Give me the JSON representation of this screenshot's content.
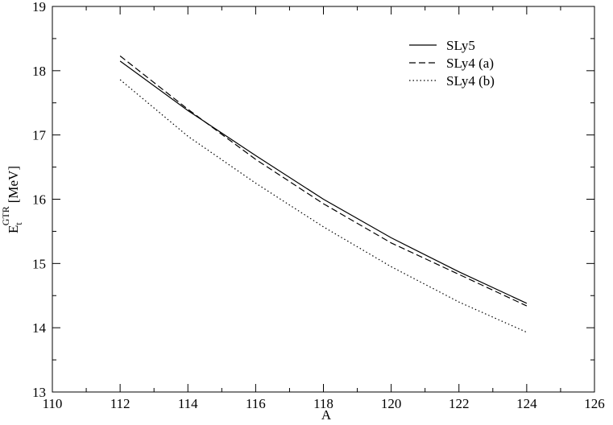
{
  "chart_data": {
    "type": "line",
    "x_label": "A",
    "y_label": {
      "main": "E",
      "sub": "t",
      "sup": "GTR",
      "unit": "[MeV]"
    },
    "x": [
      112,
      114,
      116,
      118,
      120,
      122,
      124
    ],
    "series": [
      {
        "name": "SLy5",
        "color": "#000000",
        "dash": "solid",
        "values": [
          18.15,
          17.38,
          16.68,
          16.0,
          15.4,
          14.87,
          14.38
        ]
      },
      {
        "name": "SLy4 (a)",
        "color": "#000000",
        "dash": "dashed",
        "values": [
          18.23,
          17.4,
          16.62,
          15.93,
          15.32,
          14.83,
          14.34
        ]
      },
      {
        "name": "SLy4 (b)",
        "color": "#000000",
        "dash": "dotted",
        "values": [
          17.86,
          16.98,
          16.25,
          15.57,
          14.95,
          14.4,
          13.93
        ]
      }
    ],
    "xlim": [
      110,
      126
    ],
    "xticks": [
      110,
      112,
      114,
      116,
      118,
      120,
      122,
      124,
      126
    ],
    "xminorticks": [
      111,
      113,
      115,
      117,
      119,
      121,
      123,
      125
    ],
    "ylim": [
      13,
      19
    ],
    "yticks": [
      13,
      14,
      15,
      16,
      17,
      18,
      19
    ],
    "yminorticks": [
      13.5,
      14.5,
      15.5,
      16.5,
      17.5,
      18.5
    ],
    "grid": false,
    "legend": "upper right"
  }
}
